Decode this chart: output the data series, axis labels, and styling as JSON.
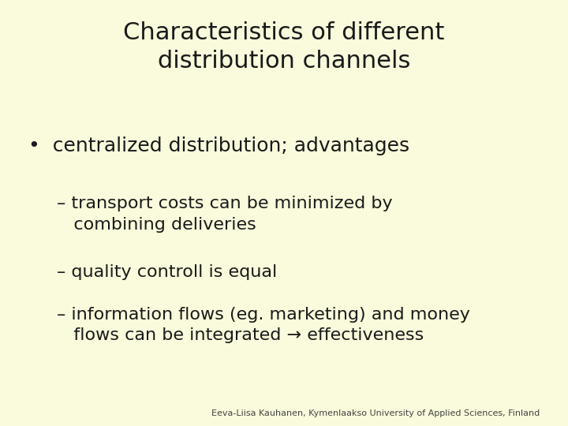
{
  "background_color": "#fafadc",
  "title_line1": "Characteristics of different",
  "title_line2": "distribution channels",
  "title_fontsize": 22,
  "title_color": "#1a1a1a",
  "bullet_text": "•  centralized distribution; advantages",
  "bullet_fontsize": 18,
  "bullet_color": "#1a1a1a",
  "sub_items": [
    "– transport costs can be minimized by\n   combining deliveries",
    "– quality controll is equal",
    "– information flows (eg. marketing) and money\n   flows can be integrated → effectiveness"
  ],
  "sub_fontsize": 16,
  "sub_color": "#1a1a1a",
  "footer_text": "Eeva-Liisa Kauhanen, Kymenlaakso University of Applied Sciences, Finland",
  "footer_fontsize": 8,
  "footer_color": "#444444"
}
